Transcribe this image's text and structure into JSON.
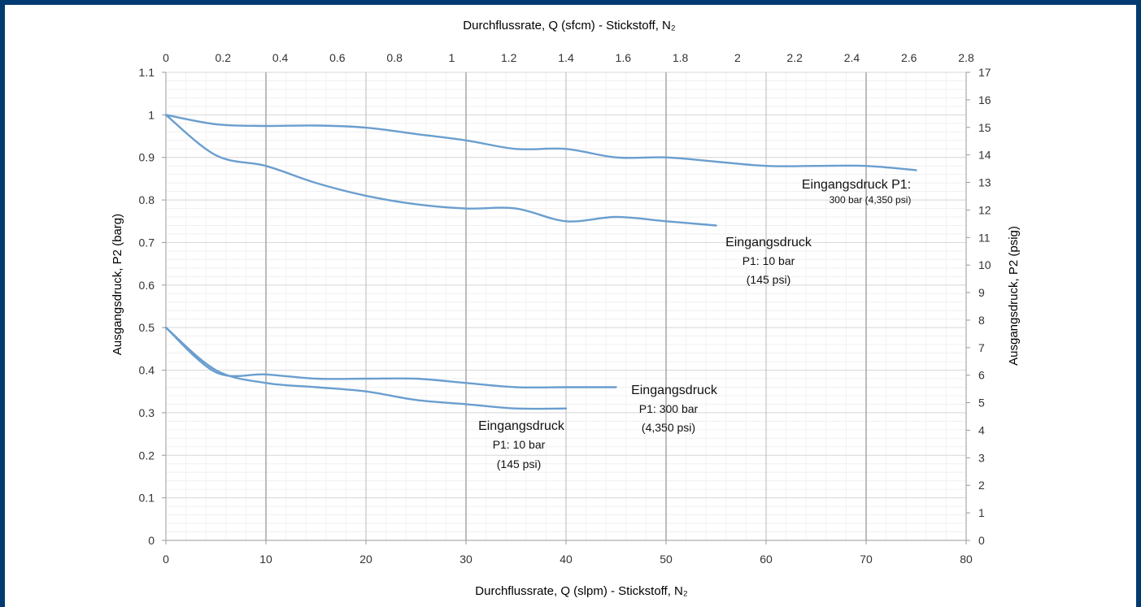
{
  "chart_data": {
    "type": "line",
    "x_axis_bottom": {
      "label": "Durchflussrate, Q (slpm) - Stickstoff, N₂",
      "range": [
        0,
        80
      ],
      "ticks": [
        "0",
        "10",
        "20",
        "30",
        "40",
        "50",
        "60",
        "70",
        "80"
      ]
    },
    "x_axis_top": {
      "label": "Durchflussrate, Q (sfcm) - Stickstoff, N₂",
      "range": [
        0,
        2.8
      ],
      "ticks": [
        "0",
        "0.2",
        "0.4",
        "0.6",
        "0.8",
        "1",
        "1.2",
        "1.4",
        "1.6",
        "1.8",
        "2",
        "2.2",
        "2.4",
        "2.6",
        "2.8"
      ]
    },
    "y_axis_left": {
      "label": "Ausgangsdruck, P2 (barg)",
      "range": [
        0,
        1.1
      ],
      "ticks": [
        "0",
        "0.1",
        "0.2",
        "0.3",
        "0.4",
        "0.5",
        "0.6",
        "0.7",
        "0.8",
        "0.9",
        "1",
        "1.1"
      ]
    },
    "y_axis_right": {
      "label": "Ausgangsdruck, P2 (psig)",
      "range": [
        0,
        17
      ],
      "ticks": [
        "0",
        "1",
        "2",
        "3",
        "4",
        "5",
        "6",
        "7",
        "8",
        "9",
        "10",
        "11",
        "12",
        "13",
        "14",
        "15",
        "16",
        "17"
      ]
    },
    "grid": true,
    "line_color": "#6a9ecf",
    "series": [
      {
        "x": [
          0,
          5,
          10,
          15,
          20,
          25,
          30,
          35,
          40,
          45,
          50,
          55,
          60,
          65,
          70,
          75
        ],
        "y": [
          1.0,
          0.978,
          0.974,
          0.975,
          0.97,
          0.955,
          0.94,
          0.92,
          0.92,
          0.9,
          0.9,
          0.89,
          0.88,
          0.88,
          0.88,
          0.87
        ]
      },
      {
        "x": [
          0,
          5,
          10,
          15,
          20,
          25,
          30,
          35,
          40,
          45,
          50,
          55
        ],
        "y": [
          1.0,
          0.905,
          0.88,
          0.84,
          0.81,
          0.79,
          0.78,
          0.78,
          0.75,
          0.76,
          0.75,
          0.74
        ]
      },
      {
        "x": [
          0,
          5,
          10,
          15,
          20,
          25,
          30,
          35,
          40,
          45
        ],
        "y": [
          0.5,
          0.395,
          0.39,
          0.38,
          0.38,
          0.38,
          0.37,
          0.36,
          0.36,
          0.36
        ]
      },
      {
        "x": [
          0,
          5,
          10,
          15,
          20,
          25,
          30,
          35,
          40
        ],
        "y": [
          0.5,
          0.4,
          0.37,
          0.36,
          0.35,
          0.33,
          0.32,
          0.31,
          0.31
        ]
      }
    ],
    "annotations": [
      {
        "lines": [
          "Eingangsdruck P1:",
          "300 bar (4,350 psi)"
        ]
      },
      {
        "lines": [
          "Eingangsdruck",
          "P1: 10 bar",
          "(145 psi)"
        ]
      },
      {
        "lines": [
          "Eingangsdruck",
          "P1: 300 bar",
          "(4,350 psi)"
        ]
      },
      {
        "lines": [
          "Eingangsdruck",
          "P1: 10 bar",
          "(145 psi)"
        ]
      }
    ]
  }
}
